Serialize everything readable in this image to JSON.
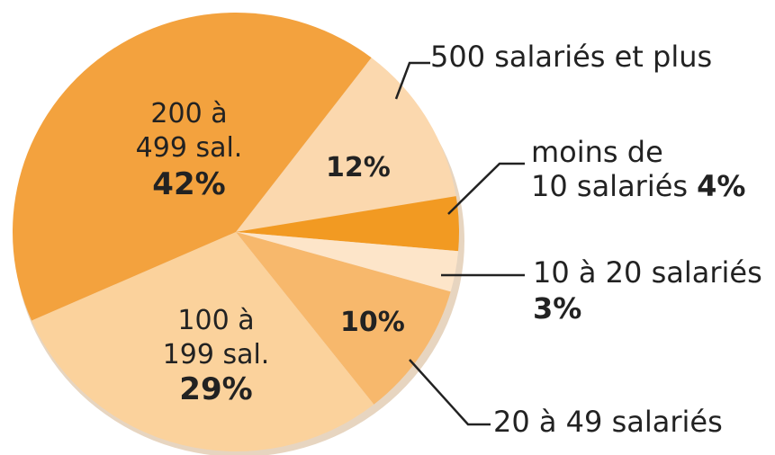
{
  "chart_data": {
    "type": "pie",
    "categories": [
      "500 salariés et plus",
      "moins de\n10 salariés",
      "10 à 20 salariés",
      "20 à 49 salariés",
      "100 à\n199 sal.",
      "200 à\n499 sal."
    ],
    "values": [
      12,
      4,
      3,
      10,
      29,
      42
    ],
    "value_labels": [
      "12%",
      "4%",
      "3%",
      "10%",
      "29%",
      "42%"
    ],
    "colors": [
      "#fbd8ae",
      "#f29a22",
      "#fde5c9",
      "#f7b86c",
      "#fbd29c",
      "#f3a23e"
    ]
  }
}
